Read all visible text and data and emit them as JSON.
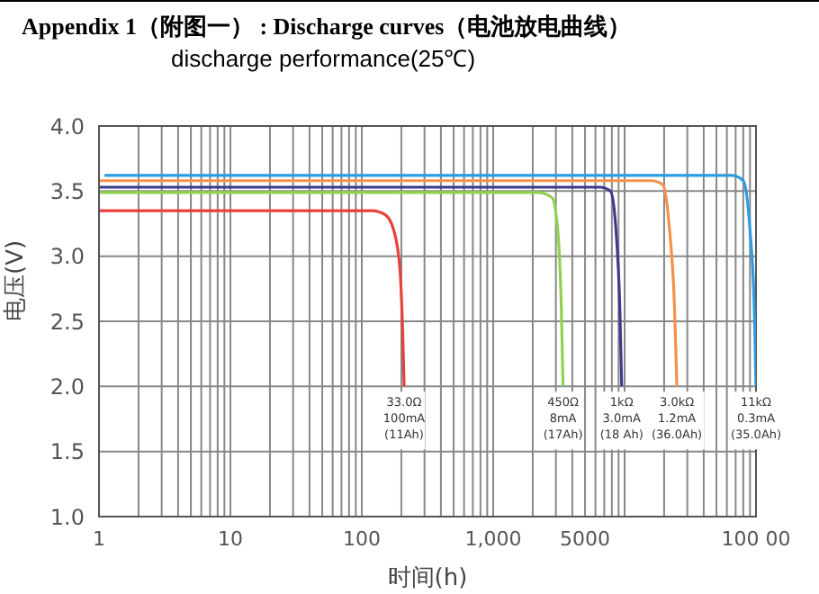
{
  "chart_data": {
    "type": "line",
    "title": "Appendix 1（附图一） : Discharge curves（电池放电曲线）",
    "subtitle": "discharge performance(25℃)",
    "xlabel": "时间(h)",
    "ylabel": "电压(V)",
    "log": "x",
    "grid": true,
    "marker": "none",
    "line_style": "solid",
    "xlim": [
      1,
      100000
    ],
    "xticks": [
      1,
      10,
      100,
      {
        "value": 1000,
        "label": "1,000"
      },
      5000,
      {
        "value": 100000,
        "label": "100 00"
      }
    ],
    "ylim": [
      1,
      4
    ],
    "yticks": [
      {
        "value": 1,
        "label": "1.0"
      },
      1.5,
      {
        "value": 2,
        "label": "2.0"
      },
      2.5,
      {
        "value": 3,
        "label": "3.0"
      },
      3.5,
      {
        "value": 4,
        "label": "4.0"
      }
    ],
    "series": [
      {
        "color": "#e8413c",
        "x": [
          1,
          120,
          150,
          175,
          195,
          205,
          210
        ],
        "values": [
          3.35,
          3.35,
          3.32,
          3.2,
          2.9,
          2.4,
          2.0
        ]
      },
      {
        "color": "#8fd14f",
        "x": [
          1,
          2200,
          2800,
          3100,
          3300,
          3400
        ],
        "values": [
          3.49,
          3.49,
          3.45,
          3.2,
          2.6,
          2.0
        ]
      },
      {
        "color": "#3c3a8a",
        "x": [
          1,
          6500,
          7800,
          8600,
          9200,
          9500
        ],
        "values": [
          3.53,
          3.53,
          3.5,
          3.2,
          2.6,
          2.0
        ]
      },
      {
        "color": "#f5904a",
        "x": [
          1,
          16000,
          19500,
          22000,
          24000,
          25000
        ],
        "values": [
          3.58,
          3.58,
          3.55,
          3.2,
          2.6,
          2.0
        ]
      },
      {
        "color": "#2e9be0",
        "x": [
          1.1,
          65000,
          80000,
          90000,
          97000,
          100000
        ],
        "values": [
          3.62,
          3.62,
          3.58,
          3.2,
          2.6,
          2.0
        ]
      }
    ],
    "annotations": [
      {
        "text": "33.0Ω\n100mA\n(11Ah)",
        "x": 210,
        "y": 2.0
      },
      {
        "text": "450Ω\n8mA\n(17Ah)",
        "x": 3400,
        "y": 2.0
      },
      {
        "text": "1kΩ\n3.0mA\n(18 Ah)",
        "x": 9500,
        "y": 2.0
      },
      {
        "text": "3.0kΩ\n1.2mA\n(36.0Ah)",
        "x": 25000,
        "y": 2.0
      },
      {
        "text": "11kΩ\n0.3mA\n(35.0Ah)",
        "x": 100000,
        "y": 2.0
      }
    ]
  }
}
